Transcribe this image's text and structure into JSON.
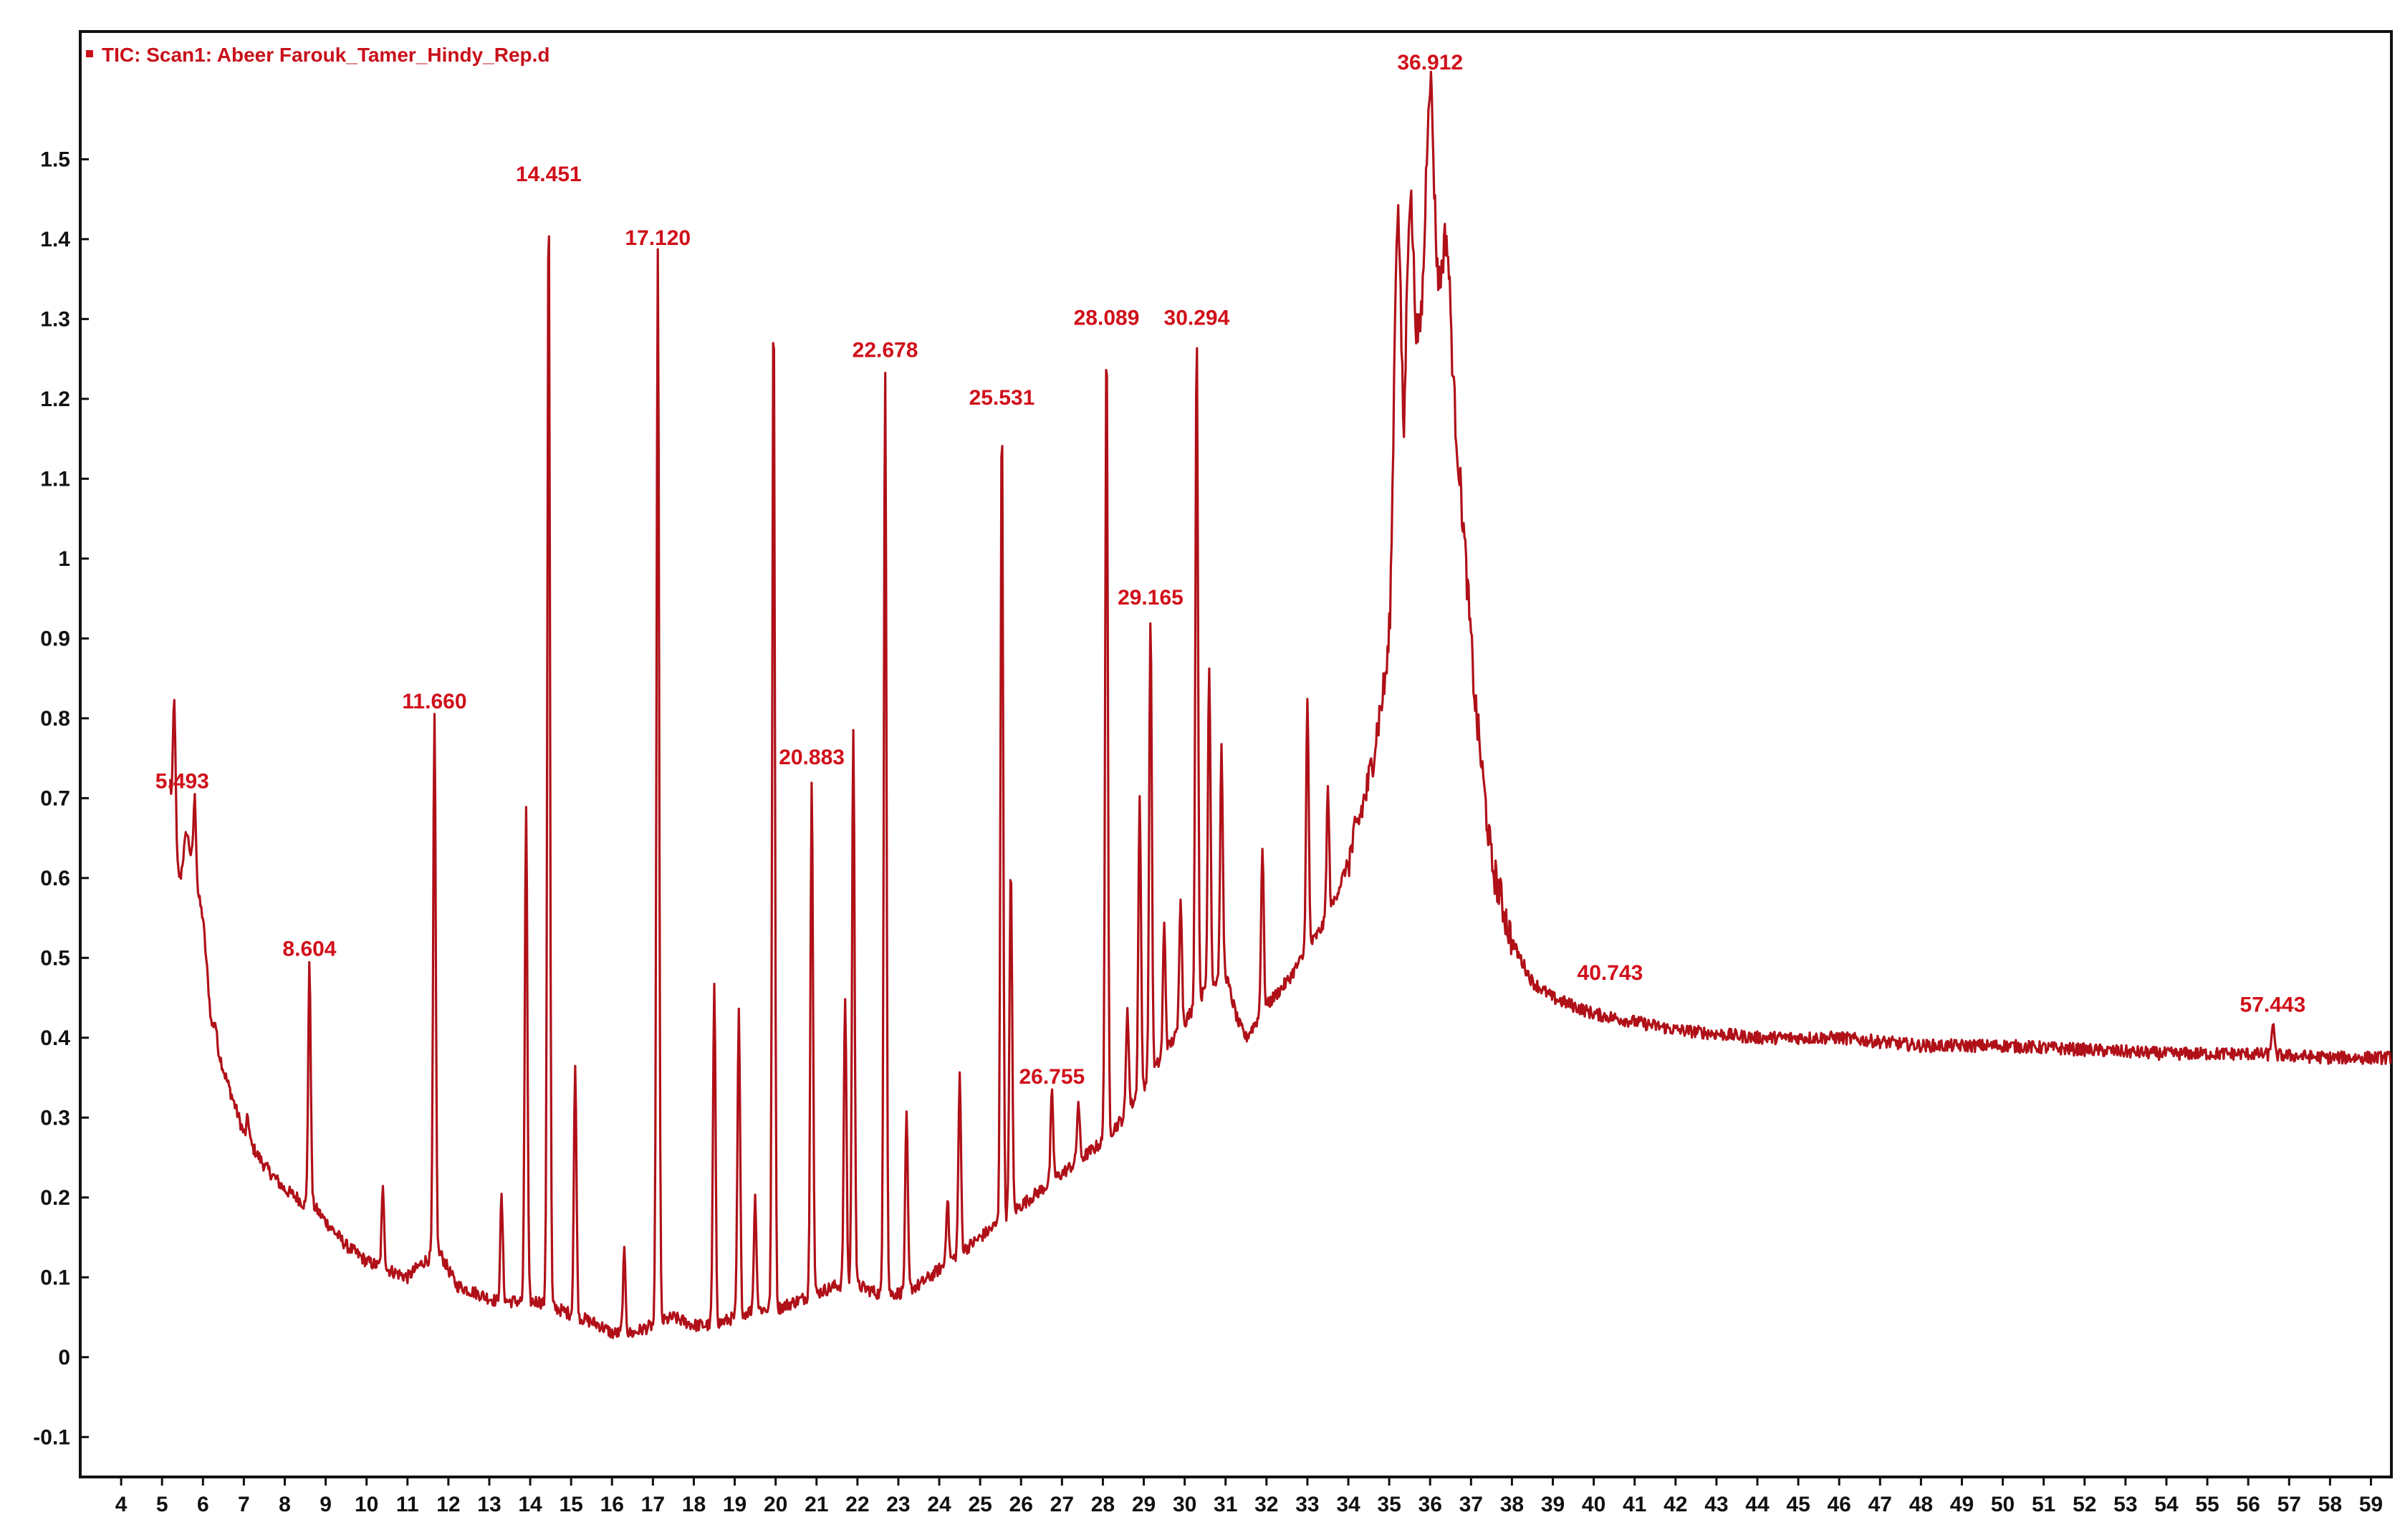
{
  "chart_data": {
    "type": "line",
    "title": "",
    "xlabel": "",
    "ylabel": "",
    "legend": {
      "text": "TIC: Scan1: Abeer Farouk_Tamer_Hindy_Rep.d",
      "placement": "top-left"
    },
    "xlim": [
      3,
      59.5
    ],
    "ylim": [
      -0.15,
      1.66
    ],
    "x_ticks": [
      4,
      5,
      6,
      7,
      8,
      9,
      10,
      11,
      12,
      13,
      14,
      15,
      16,
      17,
      18,
      19,
      20,
      21,
      22,
      23,
      24,
      25,
      26,
      27,
      28,
      29,
      30,
      31,
      32,
      33,
      34,
      35,
      36,
      37,
      38,
      39,
      40,
      41,
      42,
      43,
      44,
      45,
      46,
      47,
      48,
      49,
      50,
      51,
      52,
      53,
      54,
      55,
      56,
      57,
      58,
      59
    ],
    "y_ticks": [
      -0.1,
      0,
      0.1,
      0.2,
      0.3,
      0.4,
      0.5,
      0.6,
      0.7,
      0.8,
      0.9,
      1,
      1.1,
      1.2,
      1.3,
      1.4,
      1.5
    ],
    "y_tick_labels": [
      "-0.1",
      "0",
      "0.1",
      "0.2",
      "0.3",
      "0.4",
      "0.5",
      "0.6",
      "0.7",
      "0.8",
      "0.9",
      "1",
      "1.1",
      "1.2",
      "1.3",
      "1.4",
      "1.5"
    ],
    "colors": {
      "trace": "#b01018",
      "peak_label": "#d0101a",
      "axis": "#111111"
    },
    "peak_labels": [
      {
        "text": "5.493",
        "x": 5.493,
        "y": 0.7
      },
      {
        "text": "8.604",
        "x": 8.604,
        "y": 0.49
      },
      {
        "text": "11.660",
        "x": 11.66,
        "y": 0.8
      },
      {
        "text": "14.451",
        "x": 14.451,
        "y": 1.46
      },
      {
        "text": "17.120",
        "x": 17.12,
        "y": 1.38
      },
      {
        "text": "20.883",
        "x": 20.883,
        "y": 0.73
      },
      {
        "text": "22.678",
        "x": 22.678,
        "y": 1.24
      },
      {
        "text": "25.531",
        "x": 25.531,
        "y": 1.18
      },
      {
        "text": "26.755",
        "x": 26.755,
        "y": 0.33
      },
      {
        "text": "28.089",
        "x": 28.089,
        "y": 1.28
      },
      {
        "text": "29.165",
        "x": 29.165,
        "y": 0.93
      },
      {
        "text": "30.294",
        "x": 30.294,
        "y": 1.28
      },
      {
        "text": "36.912",
        "x": 36.0,
        "y": 1.6
      },
      {
        "text": "40.743",
        "x": 40.4,
        "y": 0.46
      },
      {
        "text": "57.443",
        "x": 56.6,
        "y": 0.42
      }
    ],
    "series": [
      {
        "x": [
          5.2,
          5.3,
          5.45,
          5.6,
          5.8,
          6.0,
          6.2,
          6.5,
          7.0,
          7.5,
          8.0,
          8.3,
          8.5,
          8.7,
          9.0,
          9.5,
          10.0,
          10.5,
          11.0,
          11.4,
          11.8,
          12.2,
          12.7,
          13.2,
          13.7,
          14.2,
          14.7,
          15.2,
          15.7,
          16.0,
          16.5,
          17.0,
          17.5,
          18.0,
          18.5,
          19.0,
          19.5,
          20.0,
          20.5,
          21.0,
          21.5,
          22.0,
          22.5,
          23.0,
          23.5,
          24.0,
          24.5,
          25.0,
          25.5,
          26.0,
          26.5,
          27.0,
          27.5,
          28.0,
          28.5,
          29.0,
          29.5,
          30.0,
          30.5,
          31.0,
          31.3,
          31.5,
          32.0,
          32.5,
          33.0,
          33.5,
          34.0,
          34.5,
          35.0,
          35.3,
          35.6,
          35.9,
          36.2,
          36.5,
          36.8,
          37.1,
          37.5,
          38.0,
          38.5,
          39.0,
          40.0,
          41.0,
          42.0,
          44.0,
          46.0,
          48.0,
          50.0,
          52.0,
          54.0,
          56.0,
          58.0,
          59.5
        ],
        "y": [
          0.72,
          0.62,
          0.6,
          0.66,
          0.6,
          0.55,
          0.42,
          0.36,
          0.28,
          0.24,
          0.21,
          0.2,
          0.19,
          0.19,
          0.17,
          0.14,
          0.12,
          0.11,
          0.1,
          0.12,
          0.13,
          0.09,
          0.08,
          0.07,
          0.07,
          0.07,
          0.06,
          0.05,
          0.04,
          0.03,
          0.03,
          0.04,
          0.05,
          0.04,
          0.04,
          0.05,
          0.06,
          0.06,
          0.07,
          0.08,
          0.09,
          0.09,
          0.08,
          0.08,
          0.09,
          0.11,
          0.13,
          0.15,
          0.17,
          0.19,
          0.21,
          0.23,
          0.25,
          0.27,
          0.3,
          0.34,
          0.38,
          0.42,
          0.46,
          0.48,
          0.42,
          0.4,
          0.44,
          0.47,
          0.51,
          0.55,
          0.62,
          0.72,
          0.88,
          1.05,
          1.22,
          1.35,
          1.34,
          1.25,
          1.05,
          0.82,
          0.62,
          0.52,
          0.47,
          0.45,
          0.43,
          0.42,
          0.41,
          0.4,
          0.4,
          0.39,
          0.39,
          0.385,
          0.38,
          0.38,
          0.375,
          0.375
        ]
      }
    ],
    "spikes": [
      {
        "x": 5.3,
        "y": 0.82
      },
      {
        "x": 5.8,
        "y": 0.7
      },
      {
        "x": 6.3,
        "y": 0.42
      },
      {
        "x": 7.1,
        "y": 0.3
      },
      {
        "x": 8.604,
        "y": 0.49
      },
      {
        "x": 10.4,
        "y": 0.21
      },
      {
        "x": 11.66,
        "y": 0.8
      },
      {
        "x": 13.3,
        "y": 0.2
      },
      {
        "x": 13.9,
        "y": 0.69
      },
      {
        "x": 14.451,
        "y": 1.46
      },
      {
        "x": 15.1,
        "y": 0.36
      },
      {
        "x": 16.3,
        "y": 0.13
      },
      {
        "x": 17.12,
        "y": 1.38
      },
      {
        "x": 18.5,
        "y": 0.46
      },
      {
        "x": 19.1,
        "y": 0.43
      },
      {
        "x": 19.5,
        "y": 0.2
      },
      {
        "x": 19.95,
        "y": 1.33
      },
      {
        "x": 20.883,
        "y": 0.73
      },
      {
        "x": 21.7,
        "y": 0.45
      },
      {
        "x": 21.9,
        "y": 0.79
      },
      {
        "x": 22.678,
        "y": 1.24
      },
      {
        "x": 23.2,
        "y": 0.3
      },
      {
        "x": 24.2,
        "y": 0.2
      },
      {
        "x": 24.5,
        "y": 0.35
      },
      {
        "x": 25.531,
        "y": 1.18
      },
      {
        "x": 25.75,
        "y": 0.62
      },
      {
        "x": 26.755,
        "y": 0.33
      },
      {
        "x": 27.4,
        "y": 0.32
      },
      {
        "x": 28.089,
        "y": 1.28
      },
      {
        "x": 28.6,
        "y": 0.44
      },
      {
        "x": 28.9,
        "y": 0.7
      },
      {
        "x": 29.165,
        "y": 0.93
      },
      {
        "x": 29.5,
        "y": 0.54
      },
      {
        "x": 29.9,
        "y": 0.58
      },
      {
        "x": 30.294,
        "y": 1.28
      },
      {
        "x": 30.6,
        "y": 0.87
      },
      {
        "x": 30.9,
        "y": 0.76
      },
      {
        "x": 31.9,
        "y": 0.64
      },
      {
        "x": 33.0,
        "y": 0.82
      },
      {
        "x": 33.5,
        "y": 0.71
      },
      {
        "x": 35.2,
        "y": 1.43
      },
      {
        "x": 35.5,
        "y": 1.45
      },
      {
        "x": 36.0,
        "y": 1.6
      },
      {
        "x": 36.4,
        "y": 1.4
      },
      {
        "x": 38.1,
        "y": 0.51
      },
      {
        "x": 56.6,
        "y": 0.42
      }
    ]
  }
}
